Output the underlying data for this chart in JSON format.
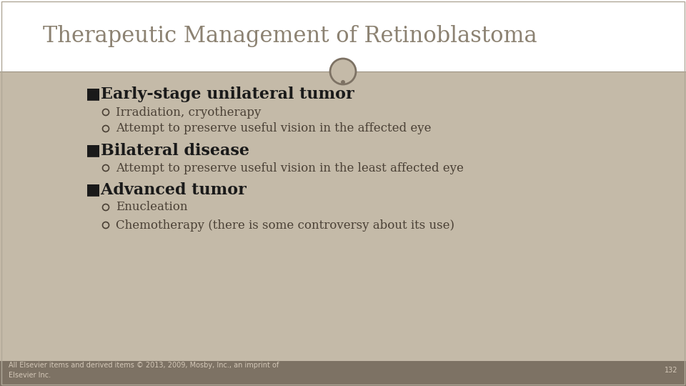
{
  "title": "Therapeutic Management of Retinoblastoma",
  "title_color": "#8c8272",
  "title_fontsize": 22,
  "title_font": "serif",
  "bg_color": "#ffffff",
  "content_bg": "#c4baa8",
  "footer_bg": "#7d7264",
  "footer_text": "All Elsevier items and derived items © 2013, 2009, Mosby, Inc., an imprint of\nElsevier Inc.",
  "footer_page": "132",
  "footer_color": "#d4c8b8",
  "footer_fontsize": 7,
  "divider_color": "#9c9282",
  "circle_color": "#7d7264",
  "heading_color": "#1a1a1a",
  "heading_fontsize": 16,
  "bullet_fontsize": 12,
  "items": [
    {
      "level": 1,
      "text": "■Early-stage unilateral tumor",
      "bold": true
    },
    {
      "level": 2,
      "text": "Irradiation, cryotherapy",
      "bold": false
    },
    {
      "level": 2,
      "text": "Attempt to preserve useful vision in the affected eye",
      "bold": false
    },
    {
      "level": 1,
      "text": "■Bilateral disease",
      "bold": true
    },
    {
      "level": 2,
      "text": "Attempt to preserve useful vision in the least affected eye",
      "bold": false
    },
    {
      "level": 1,
      "text": "■Advanced tumor",
      "bold": true
    },
    {
      "level": 2,
      "text": "Enucleation",
      "bold": false
    },
    {
      "level": 2,
      "text": "Chemotherapy (there is some controversy about its use)",
      "bold": false
    }
  ]
}
